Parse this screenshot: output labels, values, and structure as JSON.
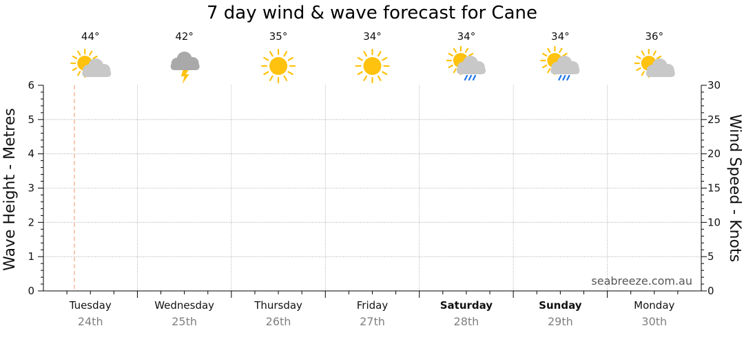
{
  "chart_data": {
    "type": "line",
    "title": "7 day wind & wave forecast for Cane",
    "watermark": "seabreeze.com.au",
    "ylabel_left": "Wave Height - Metres",
    "ylabel_right": "Wind Speed - Knots",
    "y_left_range": [
      0,
      6
    ],
    "y_left_ticks": [
      "0",
      "1",
      "2",
      "3",
      "4",
      "5",
      "6"
    ],
    "y_right_range": [
      0,
      30
    ],
    "y_right_ticks": [
      "0",
      "5",
      "10",
      "15",
      "20",
      "25",
      "30"
    ],
    "grid": true,
    "current_time_marker_day_fraction": 0.33,
    "days": [
      {
        "day": "Tuesday",
        "date": "24th",
        "temp": "44°",
        "icon": "partly-cloudy-icon",
        "bold": false
      },
      {
        "day": "Wednesday",
        "date": "25th",
        "temp": "42°",
        "icon": "thunderstorm-icon",
        "bold": false
      },
      {
        "day": "Thursday",
        "date": "26th",
        "temp": "35°",
        "icon": "sunny-icon",
        "bold": false
      },
      {
        "day": "Friday",
        "date": "27th",
        "temp": "34°",
        "icon": "sunny-icon",
        "bold": false
      },
      {
        "day": "Saturday",
        "date": "28th",
        "temp": "34°",
        "icon": "sun-shower-icon",
        "bold": true
      },
      {
        "day": "Sunday",
        "date": "29th",
        "temp": "34°",
        "icon": "sun-shower-icon",
        "bold": true
      },
      {
        "day": "Monday",
        "date": "30th",
        "temp": "36°",
        "icon": "partly-cloudy-icon",
        "bold": false
      }
    ],
    "series": []
  },
  "colors": {
    "sun": "#FFC20E",
    "sun_ray": "#FFC20E",
    "cloud": "#C8C8C8",
    "dark_cloud": "#A9A9A9",
    "rain": "#1E73E8",
    "lightning": "#FFC20E",
    "grid": "#9a9a9a",
    "marker": "#F4A582"
  }
}
